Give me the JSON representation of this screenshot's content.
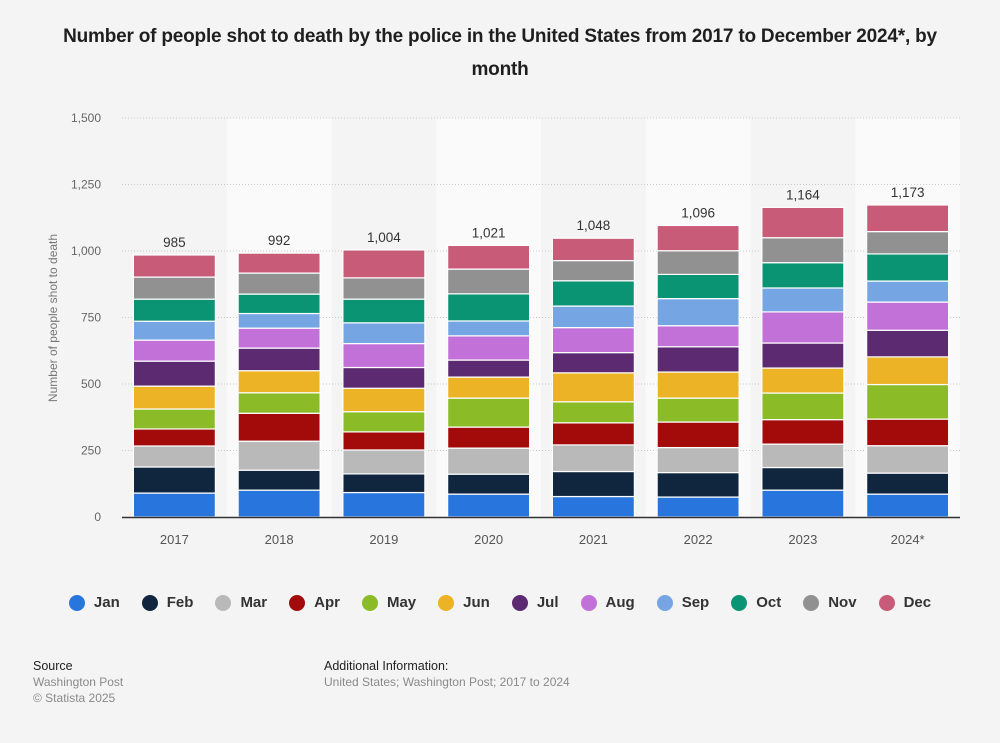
{
  "chart_data": {
    "type": "bar",
    "stacked": true,
    "title": "Number of people shot to death by the police in the United States from 2017 to December 2024*, by month",
    "xlabel": "",
    "ylabel": "Number of people shot to death",
    "ylim": [
      0,
      1500
    ],
    "yticks": [
      0,
      250,
      500,
      750,
      1000,
      1250,
      1500
    ],
    "ytick_labels": [
      "0",
      "250",
      "500",
      "750",
      "1,000",
      "1,250",
      "1,500"
    ],
    "grid": true,
    "legend_position": "bottom",
    "categories": [
      "2017",
      "2018",
      "2019",
      "2020",
      "2021",
      "2022",
      "2023",
      "2024*"
    ],
    "totals": [
      985,
      992,
      1004,
      1021,
      1048,
      1096,
      1164,
      1173
    ],
    "total_labels": [
      "985",
      "992",
      "1,004",
      "1,021",
      "1,048",
      "1,096",
      "1,164",
      "1,173"
    ],
    "series": [
      {
        "name": "Jan",
        "color": "#2876dd",
        "values": [
          90,
          101,
          92,
          86,
          77,
          75,
          101,
          86
        ]
      },
      {
        "name": "Feb",
        "color": "#10263e",
        "values": [
          98,
          75,
          70,
          75,
          94,
          92,
          85,
          79
        ]
      },
      {
        "name": "Mar",
        "color": "#b9b9b9",
        "values": [
          79,
          109,
          90,
          98,
          100,
          94,
          88,
          103
        ]
      },
      {
        "name": "Apr",
        "color": "#a30b0b",
        "values": [
          64,
          105,
          68,
          79,
          83,
          96,
          92,
          100
        ]
      },
      {
        "name": "May",
        "color": "#8bbb26",
        "values": [
          75,
          77,
          76,
          109,
          79,
          90,
          100,
          130
        ]
      },
      {
        "name": "Jun",
        "color": "#ebb325",
        "values": [
          86,
          83,
          88,
          79,
          109,
          98,
          94,
          104
        ]
      },
      {
        "name": "Jul",
        "color": "#5c2a70",
        "values": [
          94,
          85,
          78,
          64,
          76,
          95,
          94,
          100
        ]
      },
      {
        "name": "Aug",
        "color": "#c271d8",
        "values": [
          79,
          75,
          90,
          91,
          94,
          79,
          117,
          106
        ]
      },
      {
        "name": "Sep",
        "color": "#75a5e3",
        "values": [
          71,
          55,
          78,
          56,
          81,
          102,
          90,
          79
        ]
      },
      {
        "name": "Oct",
        "color": "#0b9474",
        "values": [
          83,
          73,
          89,
          102,
          95,
          91,
          95,
          102
        ]
      },
      {
        "name": "Nov",
        "color": "#919191",
        "values": [
          83,
          79,
          80,
          93,
          76,
          89,
          94,
          84
        ]
      },
      {
        "name": "Dec",
        "color": "#c85b78",
        "values": [
          83,
          75,
          105,
          89,
          84,
          95,
          114,
          100
        ]
      }
    ]
  },
  "footer": {
    "source_heading": "Source",
    "source_lines": [
      "Washington Post",
      "© Statista 2025"
    ],
    "additional_heading": "Additional Information:",
    "additional_text": "United States; Washington Post; 2017 to 2024"
  }
}
